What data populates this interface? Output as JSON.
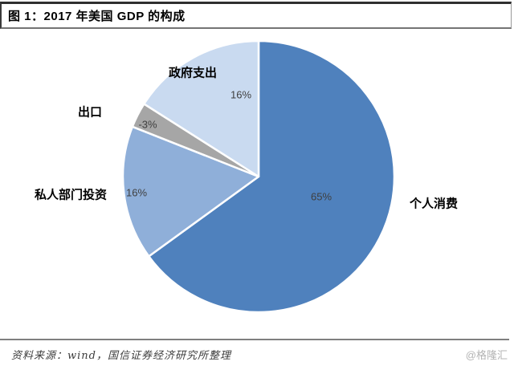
{
  "header": {
    "title": "图 1：2017 年美国 GDP 的构成"
  },
  "chart_data": {
    "type": "pie",
    "title": "图 1：2017 年美国 GDP 的构成",
    "categories": [
      "个人消费",
      "私人部门投资",
      "出口",
      "政府支出"
    ],
    "values": [
      65,
      16,
      -3,
      16
    ],
    "display_values": [
      "65%",
      "16%",
      "-3%",
      "16%"
    ],
    "colors": [
      "#4f81bd",
      "#8fafd9",
      "#a6a6a6",
      "#c9daf0"
    ],
    "slice_border_color": "#ffffff",
    "start_position": "12-oclock",
    "direction": "clockwise",
    "legend": "none",
    "label_style": "category-outside-percent-inside"
  },
  "footer": {
    "source": "资料来源：wind，国信证券经济研究所整理",
    "watermark": "@格隆汇"
  }
}
